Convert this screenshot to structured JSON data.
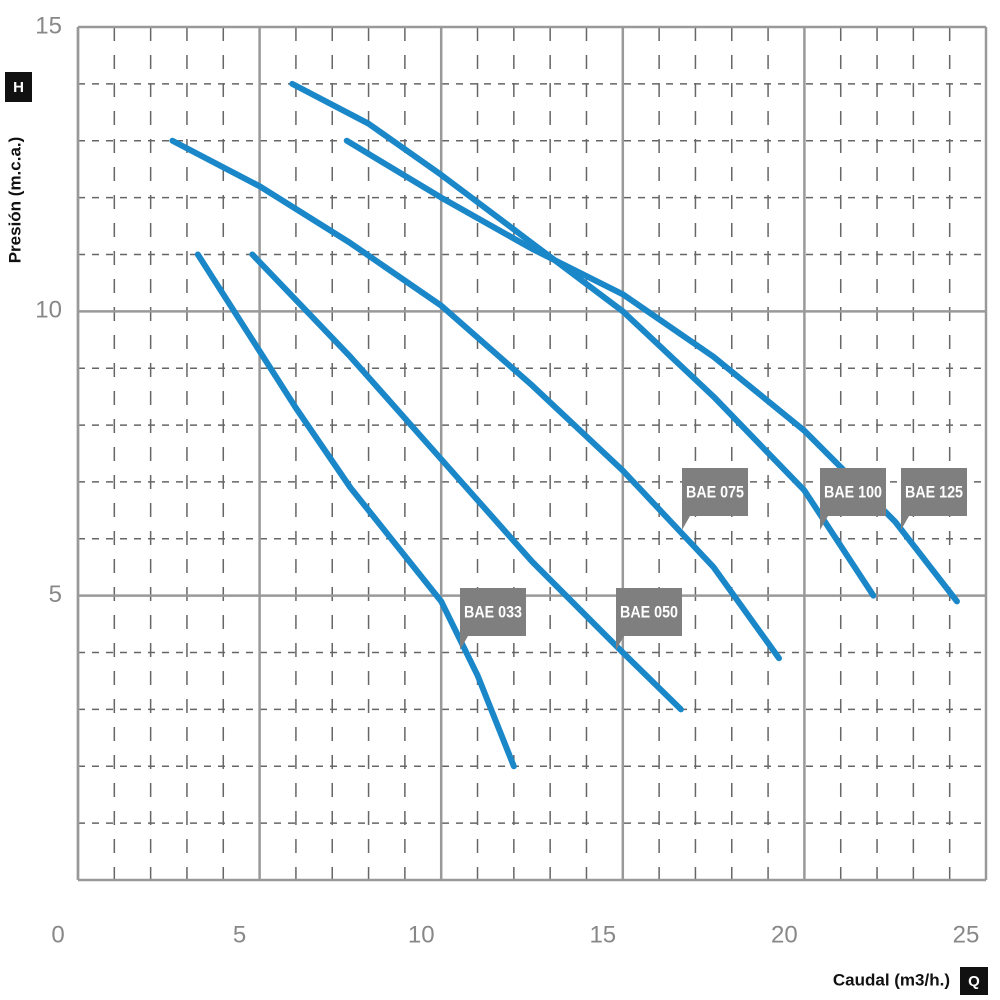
{
  "chart_data": {
    "type": "line",
    "x_label": "Caudal (m3/h.)",
    "y_label": "Presión (m.c.a.)",
    "x_symbol": "Q",
    "y_symbol": "H",
    "xlim": [
      0,
      25
    ],
    "ylim": [
      0,
      15
    ],
    "xticks": [
      0,
      5,
      10,
      15,
      20,
      25
    ],
    "yticks": [
      5,
      10,
      15
    ],
    "grid": true,
    "series": [
      {
        "name": "BAE 033",
        "color": "#1a87c9",
        "x": [
          3.3,
          6,
          7.5,
          10,
          11,
          12
        ],
        "values": [
          11,
          8.3,
          6.9,
          4.9,
          3.6,
          2
        ]
      },
      {
        "name": "BAE 050",
        "color": "#1a87c9",
        "x": [
          4.8,
          7.5,
          10,
          12.5,
          15,
          16.6
        ],
        "values": [
          11,
          9.2,
          7.4,
          5.6,
          4.0,
          3
        ]
      },
      {
        "name": "BAE 075",
        "color": "#1a87c9",
        "x": [
          2.6,
          5,
          7.5,
          10,
          12.5,
          15,
          17.5,
          19.3
        ],
        "values": [
          13,
          12.2,
          11.2,
          10.1,
          8.7,
          7.2,
          5.5,
          3.9
        ]
      },
      {
        "name": "BAE 100",
        "color": "#1a87c9",
        "x": [
          5.9,
          8,
          10,
          12.5,
          15,
          17.5,
          20,
          21.9
        ],
        "values": [
          14,
          13.3,
          12.4,
          11.2,
          10,
          8.5,
          6.85,
          5
        ]
      },
      {
        "name": "BAE 125",
        "color": "#1a87c9",
        "x": [
          7.4,
          10,
          12.5,
          15,
          17.5,
          20,
          22.5,
          24.2
        ],
        "values": [
          13,
          12,
          11.1,
          10.3,
          9.2,
          7.9,
          6.3,
          4.9
        ]
      }
    ]
  }
}
